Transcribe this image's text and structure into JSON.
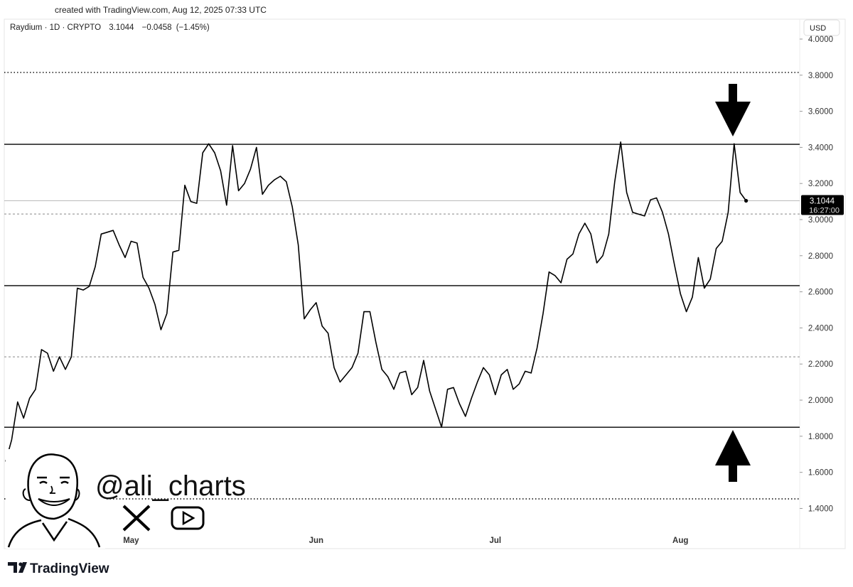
{
  "credit": "created with TradingView.com, Aug 12, 2025 07:33 UTC",
  "handle": "@ali_charts",
  "brand": "TradingView",
  "chart_data": {
    "type": "line",
    "title": "Raydium · 1D · CRYPTO",
    "change": "−0.0458",
    "change_pct": "(−1.45%)",
    "currency": "USD",
    "countdown": "16:27:00",
    "color": "#000000",
    "categories": [
      null,
      null,
      null,
      null,
      null,
      null,
      null,
      null,
      null,
      null,
      null,
      null,
      null,
      null,
      null,
      null,
      null,
      null,
      null,
      null,
      null,
      "May",
      null,
      null,
      null,
      null,
      null,
      null,
      null,
      null,
      null,
      null,
      null,
      null,
      null,
      null,
      null,
      null,
      null,
      null,
      null,
      null,
      null,
      null,
      null,
      null,
      null,
      null,
      null,
      null,
      null,
      null,
      "Jun",
      null,
      null,
      null,
      null,
      null,
      null,
      null,
      null,
      null,
      null,
      null,
      null,
      null,
      null,
      null,
      null,
      null,
      null,
      null,
      null,
      null,
      null,
      null,
      null,
      null,
      null,
      null,
      null,
      null,
      "Jul",
      null,
      null,
      null,
      null,
      null,
      null,
      null,
      null,
      null,
      null,
      null,
      null,
      null,
      null,
      null,
      null,
      null,
      null,
      null,
      null,
      null,
      null,
      null,
      null,
      null,
      null,
      null,
      null,
      null,
      null,
      "Aug",
      null,
      null,
      null,
      null,
      null,
      null,
      null,
      null,
      null,
      null,
      null
    ],
    "values": [
      1.66,
      1.78,
      1.99,
      1.9,
      2.01,
      2.06,
      2.28,
      2.26,
      2.16,
      2.24,
      2.17,
      2.24,
      2.62,
      2.61,
      2.63,
      2.74,
      2.92,
      2.93,
      2.94,
      2.86,
      2.79,
      2.88,
      2.87,
      2.68,
      2.62,
      2.53,
      2.39,
      2.48,
      2.82,
      2.83,
      3.19,
      3.1,
      3.09,
      3.37,
      3.42,
      3.37,
      3.27,
      3.08,
      3.41,
      3.16,
      3.2,
      3.28,
      3.4,
      3.14,
      3.19,
      3.22,
      3.24,
      3.21,
      3.07,
      2.86,
      2.45,
      2.5,
      2.54,
      2.41,
      2.37,
      2.18,
      2.1,
      2.14,
      2.18,
      2.26,
      2.49,
      2.49,
      2.32,
      2.17,
      2.13,
      2.06,
      2.15,
      2.16,
      2.03,
      2.07,
      2.22,
      2.05,
      1.95,
      1.85,
      2.06,
      2.07,
      1.98,
      1.91,
      2.01,
      2.1,
      2.18,
      2.14,
      2.03,
      2.14,
      2.17,
      2.06,
      2.09,
      2.16,
      2.15,
      2.29,
      2.48,
      2.71,
      2.69,
      2.65,
      2.78,
      2.81,
      2.92,
      2.98,
      2.92,
      2.76,
      2.8,
      2.92,
      3.21,
      3.43,
      3.15,
      3.04,
      3.03,
      3.02,
      3.11,
      3.12,
      3.04,
      2.92,
      2.75,
      2.59,
      2.49,
      2.57,
      2.79,
      2.62,
      2.67,
      2.84,
      2.88,
      3.04,
      3.42,
      3.15,
      3.1044
    ],
    "levels": [
      {
        "value": 3.815,
        "style": "dotted"
      },
      {
        "value": 3.417,
        "style": "solid"
      },
      {
        "value": 3.031,
        "style": "dashed"
      },
      {
        "value": 2.634,
        "style": "solid"
      },
      {
        "value": 2.24,
        "style": "dashed"
      },
      {
        "value": 1.85,
        "style": "solid"
      },
      {
        "value": 1.453,
        "style": "dotted"
      }
    ],
    "ylim": [
      1.264,
      4.118
    ],
    "yticks": [
      {
        "value": 1.4,
        "label": "1.4000"
      },
      {
        "value": 1.6,
        "label": "1.6000"
      },
      {
        "value": 1.8,
        "label": "1.8000"
      },
      {
        "value": 2.0,
        "label": "2.0000"
      },
      {
        "value": 2.2,
        "label": "2.2000"
      },
      {
        "value": 2.4,
        "label": "2.4000"
      },
      {
        "value": 2.6,
        "label": "2.6000"
      },
      {
        "value": 2.8,
        "label": "2.8000"
      },
      {
        "value": 3.0,
        "label": "3.0000"
      },
      {
        "value": 3.2,
        "label": "3.2000"
      },
      {
        "value": 3.4,
        "label": "3.4000"
      },
      {
        "value": 3.6,
        "label": "3.6000"
      },
      {
        "value": 3.8,
        "label": "3.8000"
      },
      {
        "value": 4.0,
        "label": "4.0000"
      }
    ],
    "grid": false
  }
}
